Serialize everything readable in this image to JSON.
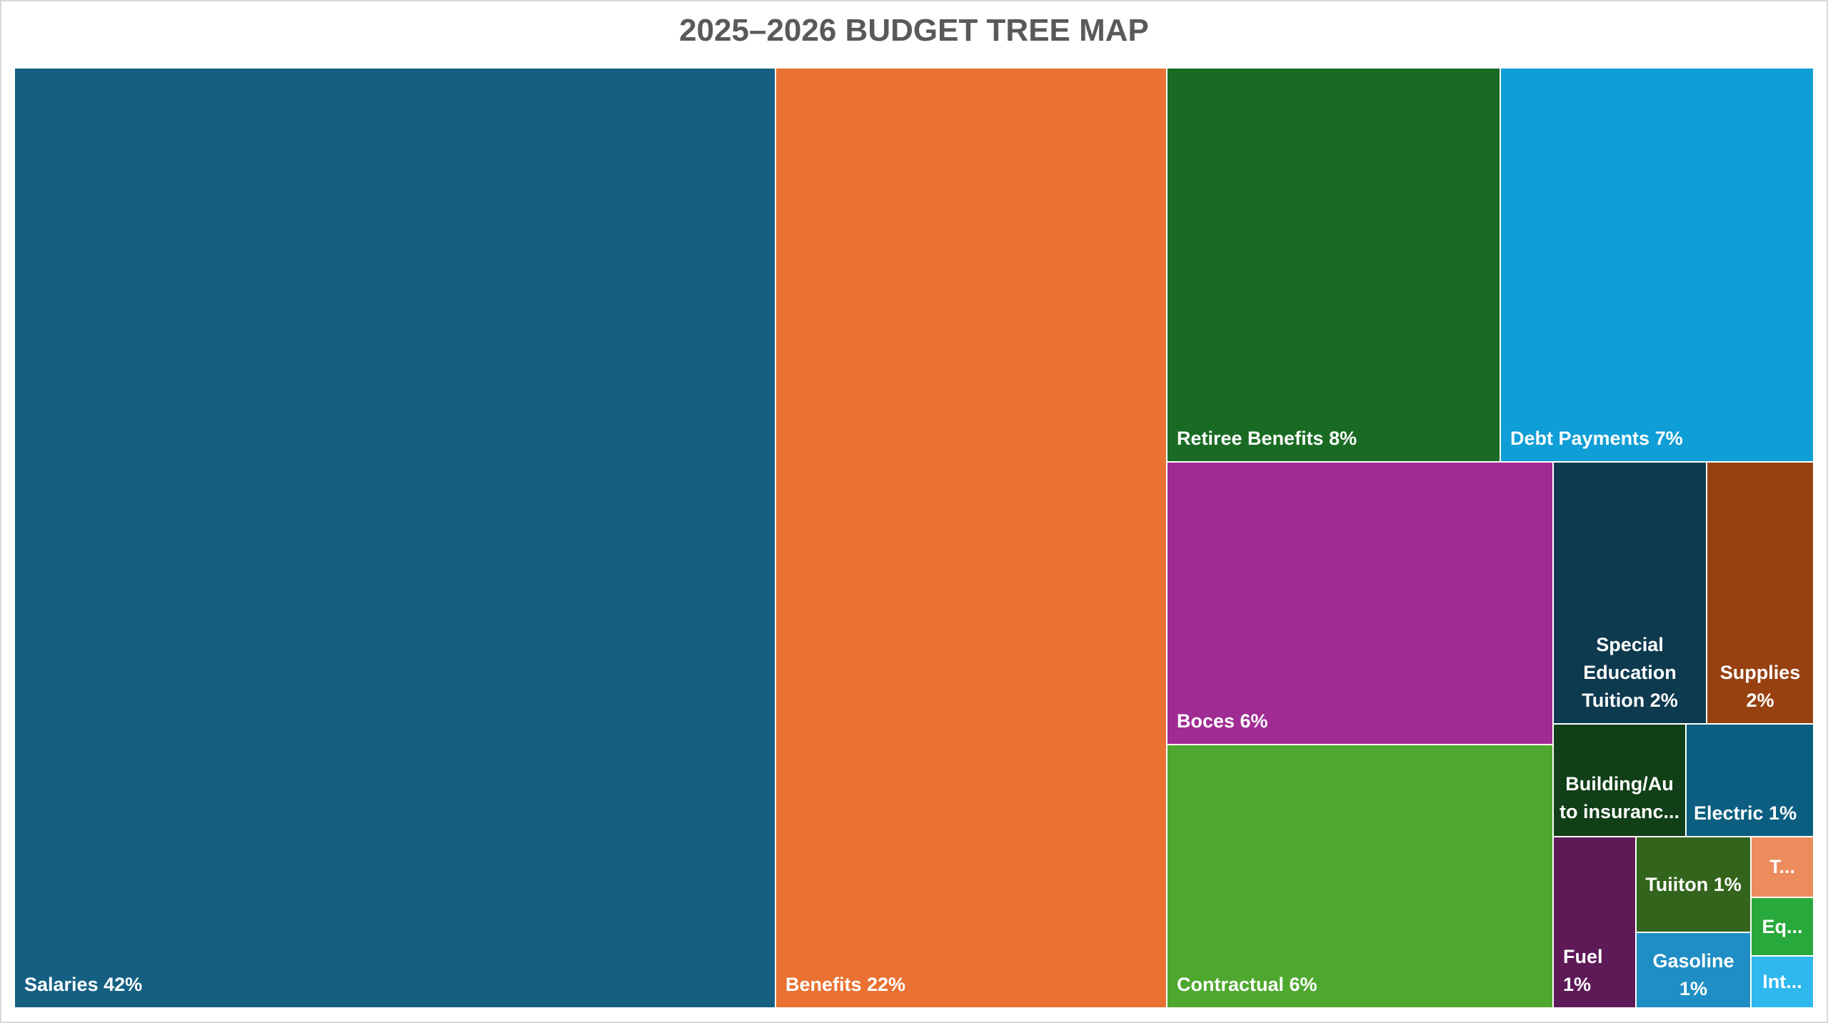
{
  "chart_data": {
    "type": "treemap",
    "title": "2025–2026 BUDGET TREE MAP",
    "items": [
      {
        "label": "Salaries 42%",
        "name": "Salaries",
        "percent": 42,
        "color": "#156082"
      },
      {
        "label": "Benefits 22%",
        "name": "Benefits",
        "percent": 22,
        "color": "#E97132"
      },
      {
        "label": "Retiree Benefits 8%",
        "name": "Retiree Benefits",
        "percent": 8,
        "color": "#196B24"
      },
      {
        "label": "Debt Payments 7%",
        "name": "Debt Payments",
        "percent": 7,
        "color": "#0F9ED5"
      },
      {
        "label": "Boces 6%",
        "name": "Boces",
        "percent": 6,
        "color": "#A02B93"
      },
      {
        "label": "Contractual 6%",
        "name": "Contractual",
        "percent": 6,
        "color": "#4EA72E"
      },
      {
        "label": "Special Education Tuition 2%",
        "name": "Special Education Tuition",
        "percent": 2,
        "color": "#0E3A4F"
      },
      {
        "label": "Supplies 2%",
        "name": "Supplies",
        "percent": 2,
        "color": "#974010"
      },
      {
        "label": "Building/Au to insuranc...",
        "name": "Building/Auto insuranc...",
        "color": "#113F17"
      },
      {
        "label": "Electric 1%",
        "name": "Electric",
        "percent": 1,
        "color": "#0B5E80"
      },
      {
        "label": "Fuel 1%",
        "name": "Fuel",
        "percent": 1,
        "color": "#5E1A57"
      },
      {
        "label": "Tuiiton 1%",
        "name": "Tuiiton",
        "percent": 1,
        "color": "#33641C"
      },
      {
        "label": "Gasoline 1%",
        "name": "Gasoline",
        "percent": 1,
        "color": "#1F8EC4"
      },
      {
        "label": "T...",
        "color": "#EC8B5B"
      },
      {
        "label": "Eq...",
        "color": "#29A83B"
      },
      {
        "label": "Int...",
        "color": "#2EB8EE"
      }
    ]
  }
}
